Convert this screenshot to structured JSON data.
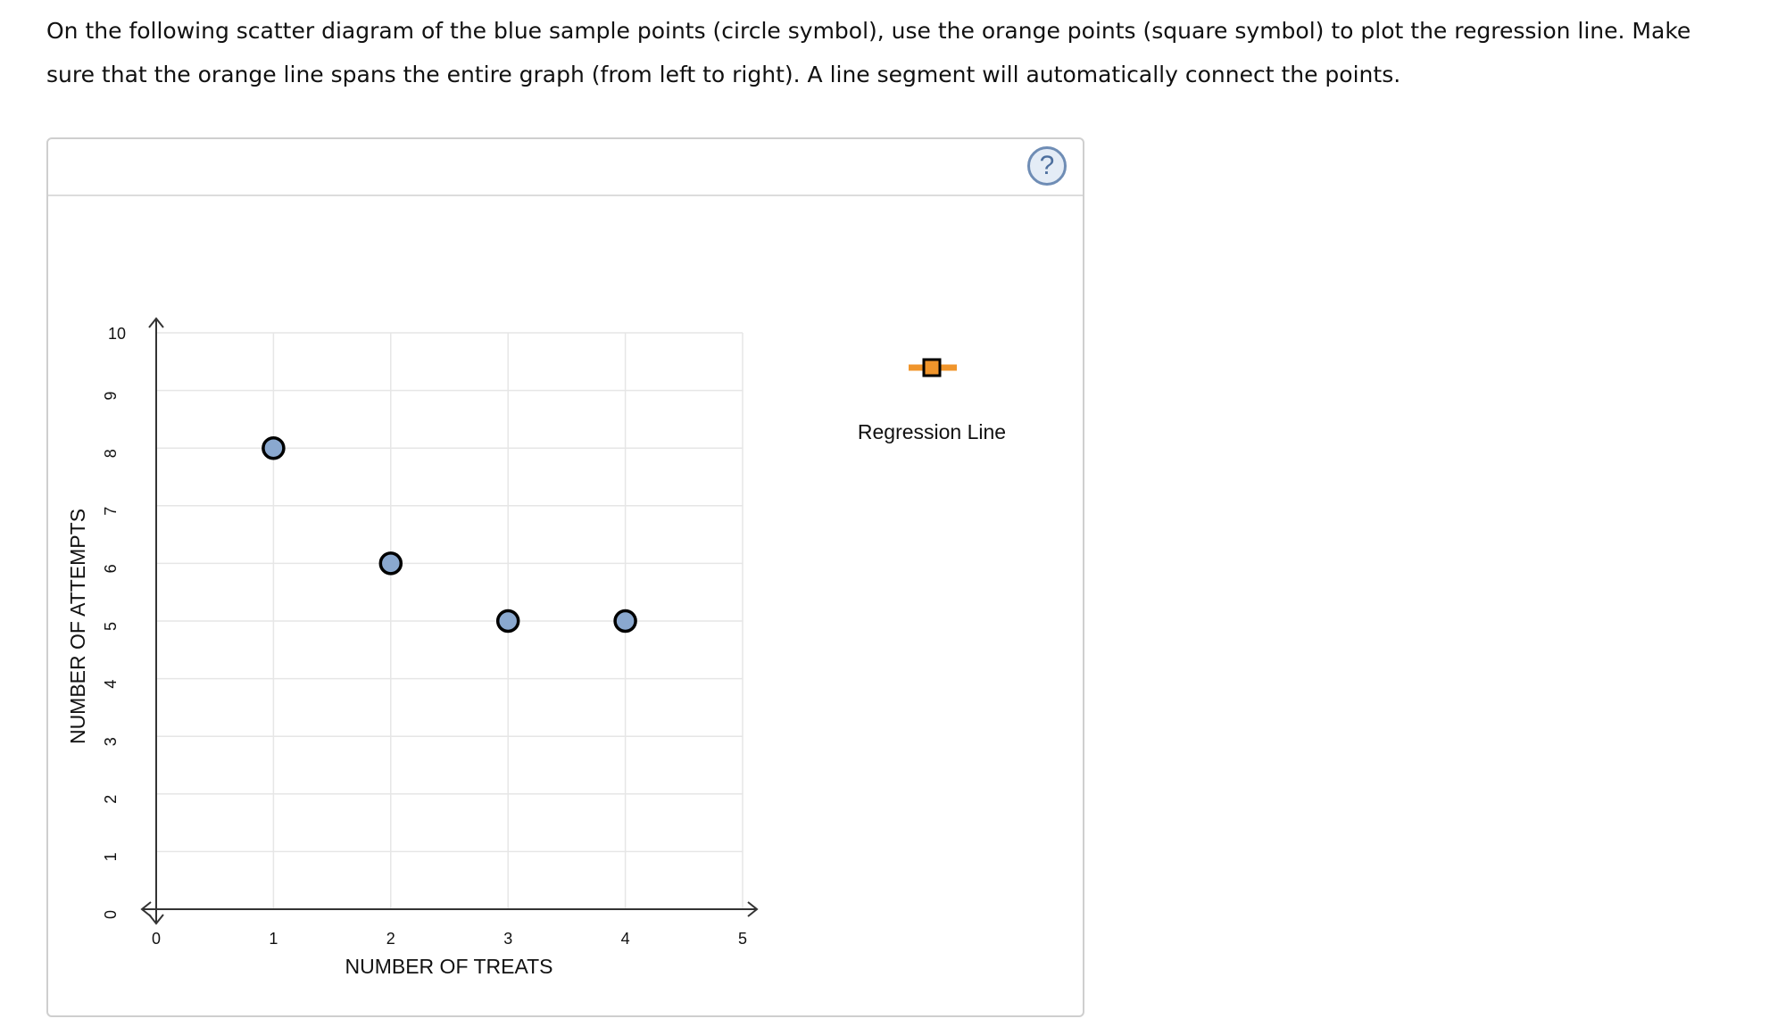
{
  "instructions": "On the following scatter diagram of the blue sample points (circle symbol), use the orange points (square symbol) to plot the regression line. Make sure that the orange line spans the entire graph (from left to right). A line segment will automatically connect the points.",
  "help": {
    "label": "?",
    "icon": "help-icon"
  },
  "legend": {
    "label": "Regression Line",
    "icon": "regression-line-tool-icon",
    "color": "#f0952b"
  },
  "colors": {
    "sample_fill": "#8aa8cf",
    "sample_stroke": "#000000",
    "regression": "#f0952b",
    "grid": "#e6e6e6",
    "axis": "#333333"
  },
  "chart_data": {
    "type": "scatter",
    "title": "",
    "xlabel": "NUMBER OF TREATS",
    "ylabel": "NUMBER OF ATTEMPTS",
    "xlim": [
      0,
      5
    ],
    "ylim": [
      0,
      10
    ],
    "xticks": [
      "0",
      "1",
      "2",
      "3",
      "4",
      "5"
    ],
    "yticks": [
      "0",
      "1",
      "2",
      "3",
      "4",
      "5",
      "6",
      "7",
      "8",
      "9",
      "10"
    ],
    "grid": true,
    "legend_position": "right",
    "series": [
      {
        "name": "",
        "marker": "circle",
        "points": [
          {
            "x": 1,
            "y": 8
          },
          {
            "x": 2,
            "y": 6
          },
          {
            "x": 3,
            "y": 5
          },
          {
            "x": 4,
            "y": 5
          }
        ]
      }
    ]
  }
}
